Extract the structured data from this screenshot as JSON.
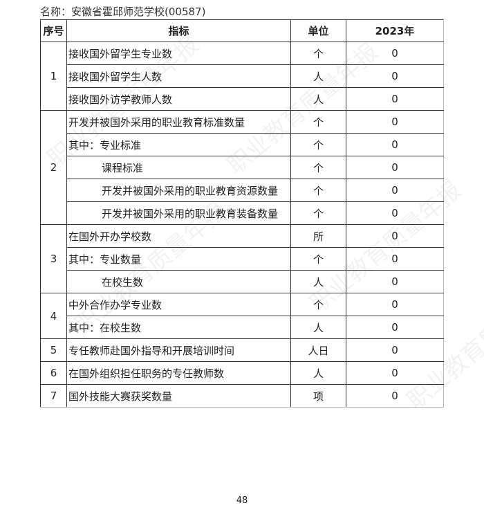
{
  "header": {
    "name_label": "名称：安徽省霍邱师范学校(00587)"
  },
  "table": {
    "columns": [
      "序号",
      "指标",
      "单位",
      "2023年"
    ],
    "rows": [
      {
        "no": "1",
        "span": 3,
        "indicator": "接收国外留学生专业数",
        "unit": "个",
        "value": "0",
        "indent": false
      },
      {
        "indicator": "接收国外留学生人数",
        "unit": "人",
        "value": "0",
        "indent": false
      },
      {
        "indicator": "接收国外访学教师人数",
        "unit": "人",
        "value": "0",
        "indent": false
      },
      {
        "no": "2",
        "span": 5,
        "indicator": "开发并被国外采用的职业教育标准数量",
        "unit": "个",
        "value": "0",
        "indent": false
      },
      {
        "indicator": "其中：专业标准",
        "unit": "个",
        "value": "0",
        "indent": false
      },
      {
        "indicator": "课程标准",
        "unit": "个",
        "value": "0",
        "indent": true
      },
      {
        "indicator": "开发并被国外采用的职业教育资源数量",
        "unit": "个",
        "value": "0",
        "indent": true
      },
      {
        "indicator": "开发并被国外采用的职业教育装备数量",
        "unit": "个",
        "value": "0",
        "indent": true
      },
      {
        "no": "3",
        "span": 3,
        "indicator": "在国外开办学校数",
        "unit": "所",
        "value": "0",
        "indent": false
      },
      {
        "indicator": "其中：专业数量",
        "unit": "个",
        "value": "0",
        "indent": false
      },
      {
        "indicator": "在校生数",
        "unit": "人",
        "value": "0",
        "indent": true
      },
      {
        "no": "4",
        "span": 2,
        "indicator": "中外合作办学专业数",
        "unit": "个",
        "value": "0",
        "indent": false
      },
      {
        "indicator": "其中：在校生数",
        "unit": "人",
        "value": "0",
        "indent": false
      },
      {
        "no": "5",
        "span": 1,
        "indicator": "专任教师赴国外指导和开展培训时间",
        "unit": "人日",
        "value": "0",
        "indent": false
      },
      {
        "no": "6",
        "span": 1,
        "indicator": "在国外组织担任职务的专任教师数",
        "unit": "人",
        "value": "0",
        "indent": false
      },
      {
        "no": "7",
        "span": 1,
        "indicator": "国外技能大赛获奖数量",
        "unit": "项",
        "value": "0",
        "indent": false
      }
    ]
  },
  "footer": {
    "page_number": "48"
  },
  "watermark": "职业教育质量年报"
}
